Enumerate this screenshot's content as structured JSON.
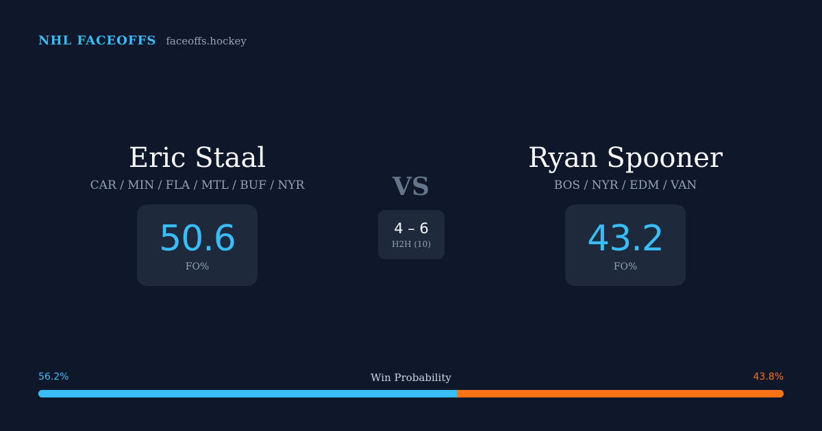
{
  "brand": {
    "name": "NHL FACEOFFS",
    "domain": "faceoffs.hockey"
  },
  "players": {
    "left": {
      "name": "Eric Staal",
      "teams": "CAR / MIN / FLA / MTL / BUF / NYR",
      "stat_value": "50.6",
      "stat_label": "FO%"
    },
    "right": {
      "name": "Ryan Spooner",
      "teams": "BOS / NYR / EDM / VAN",
      "stat_value": "43.2",
      "stat_label": "FO%"
    }
  },
  "vs_label": "VS",
  "head_to_head": {
    "score": "4 – 6",
    "label": "H2H (10)"
  },
  "win_probability": {
    "title": "Win Probability",
    "left_label": "56.2%",
    "right_label": "43.8%",
    "left_fraction": 0.562
  },
  "colors": {
    "background": "#0f172a",
    "accent_left": "#38bdf8",
    "accent_right": "#f97316",
    "card": "#1e293b"
  }
}
